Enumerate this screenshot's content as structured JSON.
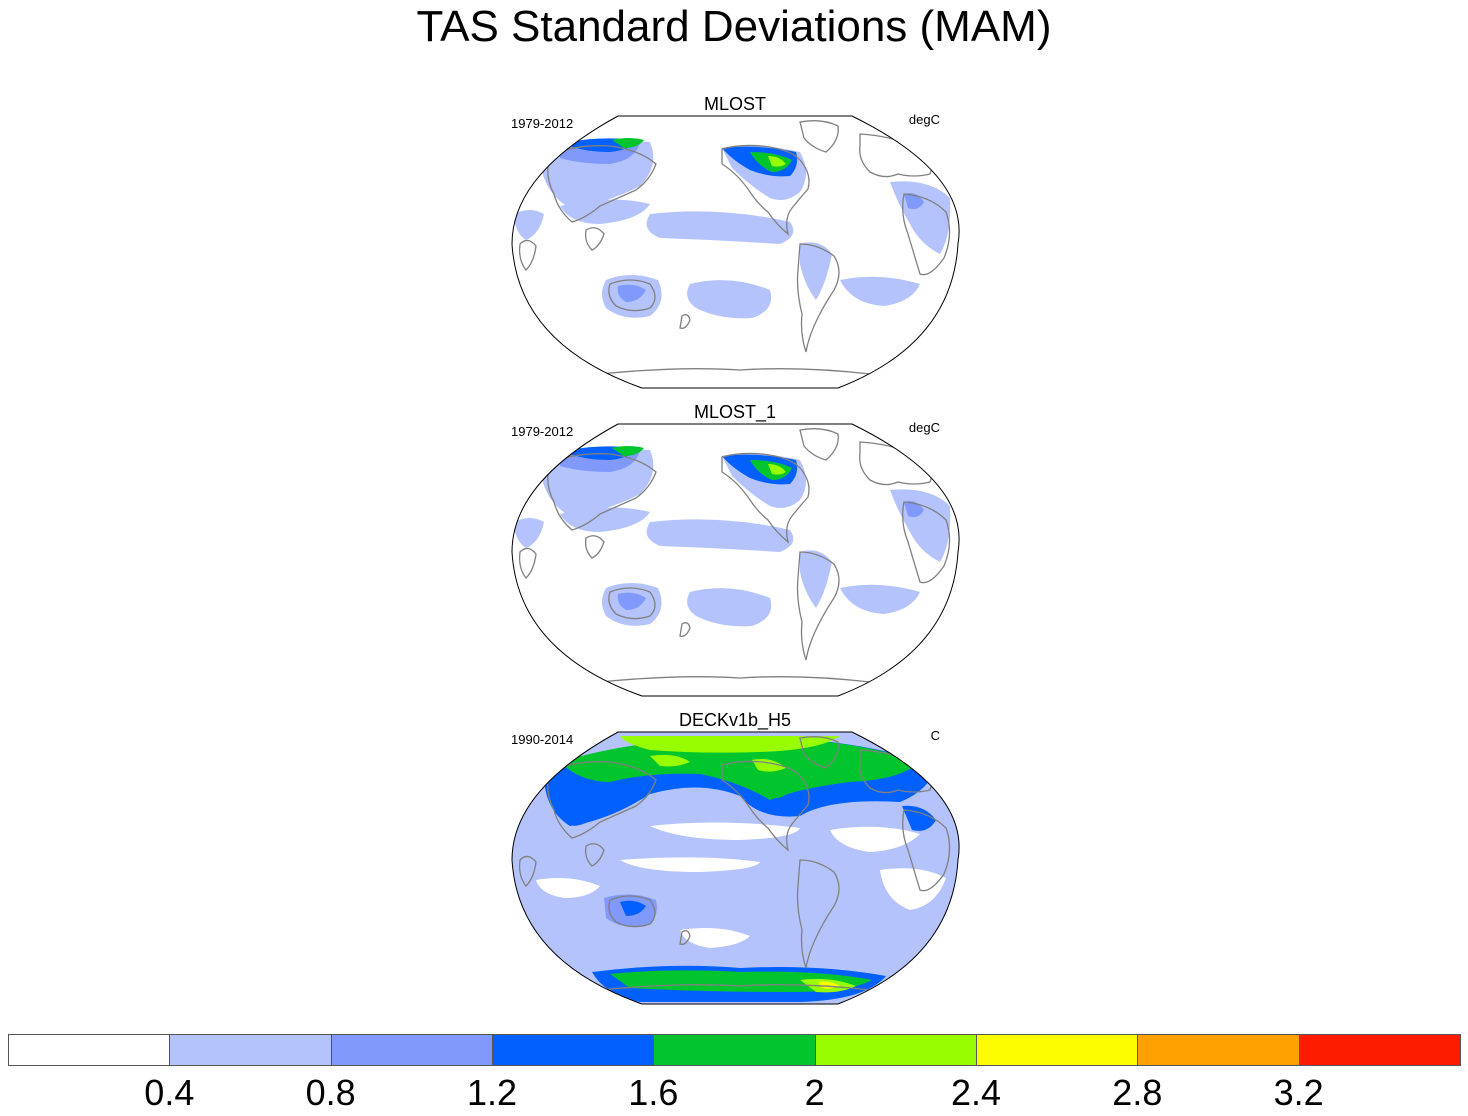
{
  "title": "TAS Standard Deviations (MAM)",
  "panels": [
    {
      "title": "MLOST",
      "period": "1979-2012",
      "units": "degC",
      "variant": "obs"
    },
    {
      "title": "MLOST_1",
      "period": "1979-2012",
      "units": "degC",
      "variant": "obs"
    },
    {
      "title": "DECKv1b_H5",
      "period": "1990-2014",
      "units": "C",
      "variant": "model"
    }
  ],
  "colorbar": {
    "colors": [
      "#ffffff",
      "#b4c3fb",
      "#8099fb",
      "#0160fe",
      "#02c52d",
      "#99fd02",
      "#fdfd00",
      "#fea100",
      "#fe1c00"
    ],
    "labels": [
      "0.4",
      "0.8",
      "1.2",
      "1.6",
      "2",
      "2.4",
      "2.8",
      "3.2"
    ]
  }
}
